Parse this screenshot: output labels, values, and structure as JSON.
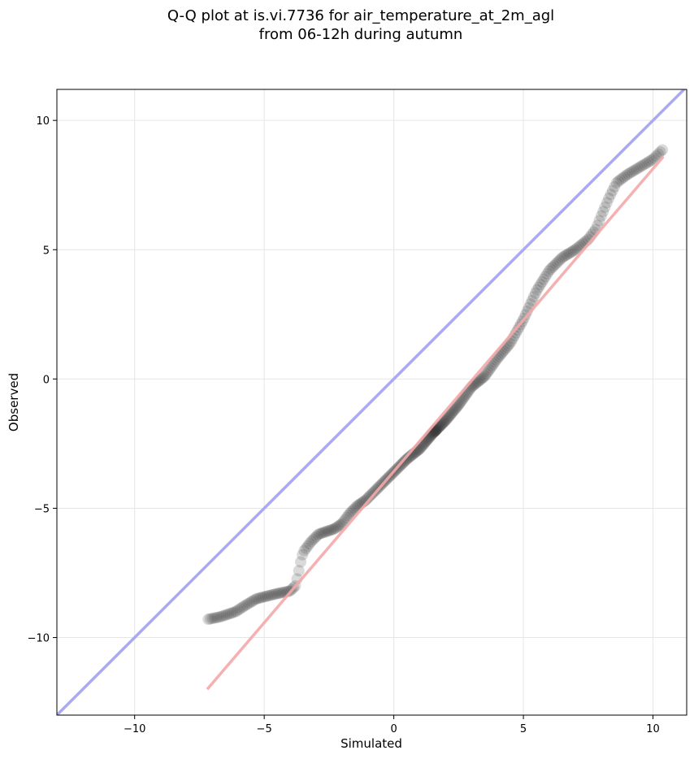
{
  "chart_data": {
    "type": "scatter",
    "title_lines": [
      "Q-Q plot at is.vi.7736 for air_temperature_at_2m_agl",
      "from 06-12h during autumn"
    ],
    "xlabel": "Simulated",
    "ylabel": "Observed",
    "xlim": [
      -13.0,
      11.3
    ],
    "ylim": [
      -13.0,
      11.2
    ],
    "x_ticks": [
      -10,
      -5,
      0,
      5,
      10
    ],
    "x_tick_labels": [
      "−10",
      "−5",
      "0",
      "5",
      "10"
    ],
    "y_ticks": [
      -10,
      -5,
      0,
      5,
      10
    ],
    "y_tick_labels": [
      "−10",
      "−5",
      "0",
      "5",
      "10"
    ],
    "grid": true,
    "colors": {
      "points": "#333333",
      "identity_line": "#aaaaf4",
      "fit_line": "#f4a9a9",
      "grid": "#e6e6e6"
    },
    "identity_line": {
      "x": [
        -13.0,
        11.3
      ],
      "y": [
        -13.0,
        11.3
      ]
    },
    "fit_line": {
      "x": [
        -7.2,
        10.4
      ],
      "y": [
        -12.0,
        8.6
      ]
    },
    "quantile_anchors": {
      "x": [
        -7.2,
        -6.7,
        -6.1,
        -5.8,
        -5.3,
        -4.9,
        -4.5,
        -4.0,
        -3.8,
        -3.7,
        -3.6,
        -3.5,
        -3.2,
        -2.9,
        -2.6,
        -2.3,
        -2.0,
        -1.7,
        -1.4,
        -1.1,
        -0.8,
        -0.5,
        -0.2,
        0.1,
        0.5,
        1.0,
        1.5,
        2.0,
        2.5,
        3.0,
        3.5,
        4.0,
        4.5,
        5.0,
        5.5,
        6.0,
        6.5,
        7.0,
        7.5,
        7.8,
        8.0,
        8.3,
        8.6,
        9.0,
        9.5,
        10.0,
        10.4
      ],
      "y": [
        -9.3,
        -9.2,
        -9.0,
        -8.8,
        -8.5,
        -8.4,
        -8.3,
        -8.2,
        -8.0,
        -7.6,
        -7.1,
        -6.7,
        -6.3,
        -6.0,
        -5.9,
        -5.8,
        -5.6,
        -5.2,
        -4.9,
        -4.7,
        -4.4,
        -4.1,
        -3.8,
        -3.5,
        -3.1,
        -2.7,
        -2.1,
        -1.6,
        -1.0,
        -0.3,
        0.1,
        0.8,
        1.4,
        2.3,
        3.4,
        4.2,
        4.7,
        5.0,
        5.4,
        5.8,
        6.3,
        7.0,
        7.6,
        7.9,
        8.2,
        8.5,
        8.9
      ]
    },
    "quantile_count": 300
  }
}
